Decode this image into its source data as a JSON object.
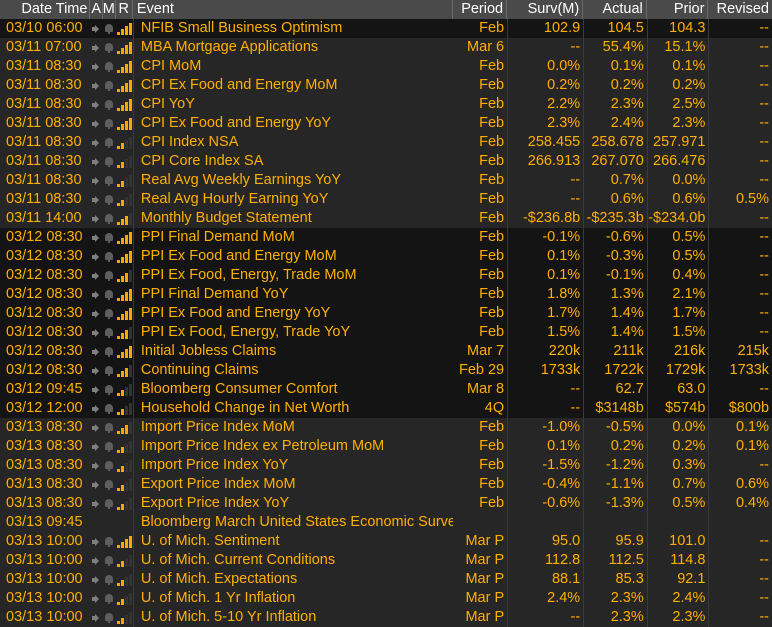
{
  "headers": {
    "date_time": "Date Time",
    "a": "A",
    "m": "M",
    "r": "R",
    "event": "Event",
    "period": "Period",
    "surv": "Surv(M)",
    "actual": "Actual",
    "prior": "Prior",
    "revised": "Revised"
  },
  "colors": {
    "text": "#ffb000",
    "header_bg": "#4a4a4a",
    "row_dark": "#141414",
    "row_light": "#262626",
    "relevance_bar": "#ffa500"
  },
  "rows": [
    {
      "date": "03/10 06:00",
      "event": "NFIB Small Business Optimism",
      "period": "Feb",
      "surv": "102.9",
      "actual": "104.5",
      "prior": "104.3",
      "revised": "--",
      "relevance": 4,
      "group": 0,
      "icons": true
    },
    {
      "date": "03/11 07:00",
      "event": "MBA Mortgage Applications",
      "period": "Mar 6",
      "surv": "--",
      "actual": "55.4%",
      "prior": "15.1%",
      "revised": "--",
      "relevance": 4,
      "group": 1,
      "icons": true
    },
    {
      "date": "03/11 08:30",
      "event": "CPI MoM",
      "period": "Feb",
      "surv": "0.0%",
      "actual": "0.1%",
      "prior": "0.1%",
      "revised": "--",
      "relevance": 4,
      "group": 1,
      "icons": true
    },
    {
      "date": "03/11 08:30",
      "event": "CPI Ex Food and Energy MoM",
      "period": "Feb",
      "surv": "0.2%",
      "actual": "0.2%",
      "prior": "0.2%",
      "revised": "--",
      "relevance": 4,
      "group": 1,
      "icons": true
    },
    {
      "date": "03/11 08:30",
      "event": "CPI YoY",
      "period": "Feb",
      "surv": "2.2%",
      "actual": "2.3%",
      "prior": "2.5%",
      "revised": "--",
      "relevance": 4,
      "group": 1,
      "icons": true
    },
    {
      "date": "03/11 08:30",
      "event": "CPI Ex Food and Energy YoY",
      "period": "Feb",
      "surv": "2.3%",
      "actual": "2.4%",
      "prior": "2.3%",
      "revised": "--",
      "relevance": 4,
      "group": 1,
      "icons": true
    },
    {
      "date": "03/11 08:30",
      "event": "CPI Index NSA",
      "period": "Feb",
      "surv": "258.455",
      "actual": "258.678",
      "prior": "257.971",
      "revised": "--",
      "relevance": 2,
      "group": 1,
      "icons": true
    },
    {
      "date": "03/11 08:30",
      "event": "CPI Core Index SA",
      "period": "Feb",
      "surv": "266.913",
      "actual": "267.070",
      "prior": "266.476",
      "revised": "--",
      "relevance": 2,
      "group": 1,
      "icons": true
    },
    {
      "date": "03/11 08:30",
      "event": "Real Avg Weekly Earnings YoY",
      "period": "Feb",
      "surv": "--",
      "actual": "0.7%",
      "prior": "0.0%",
      "revised": "--",
      "relevance": 2,
      "group": 1,
      "icons": true
    },
    {
      "date": "03/11 08:30",
      "event": "Real Avg Hourly Earning YoY",
      "period": "Feb",
      "surv": "--",
      "actual": "0.6%",
      "prior": "0.6%",
      "revised": "0.5%",
      "relevance": 2,
      "group": 1,
      "icons": true
    },
    {
      "date": "03/11 14:00",
      "event": "Monthly Budget Statement",
      "period": "Feb",
      "surv": "-$236.8b",
      "actual": "-$235.3b",
      "prior": "-$234.0b",
      "revised": "--",
      "relevance": 3,
      "group": 1,
      "icons": true
    },
    {
      "date": "03/12 08:30",
      "event": "PPI Final Demand MoM",
      "period": "Feb",
      "surv": "-0.1%",
      "actual": "-0.6%",
      "prior": "0.5%",
      "revised": "--",
      "relevance": 4,
      "group": 0,
      "icons": true
    },
    {
      "date": "03/12 08:30",
      "event": "PPI Ex Food and Energy MoM",
      "period": "Feb",
      "surv": "0.1%",
      "actual": "-0.3%",
      "prior": "0.5%",
      "revised": "--",
      "relevance": 4,
      "group": 0,
      "icons": true
    },
    {
      "date": "03/12 08:30",
      "event": "PPI Ex Food, Energy, Trade MoM",
      "period": "Feb",
      "surv": "0.1%",
      "actual": "-0.1%",
      "prior": "0.4%",
      "revised": "--",
      "relevance": 3,
      "group": 0,
      "icons": true
    },
    {
      "date": "03/12 08:30",
      "event": "PPI Final Demand YoY",
      "period": "Feb",
      "surv": "1.8%",
      "actual": "1.3%",
      "prior": "2.1%",
      "revised": "--",
      "relevance": 4,
      "group": 0,
      "icons": true
    },
    {
      "date": "03/12 08:30",
      "event": "PPI Ex Food and Energy YoY",
      "period": "Feb",
      "surv": "1.7%",
      "actual": "1.4%",
      "prior": "1.7%",
      "revised": "--",
      "relevance": 4,
      "group": 0,
      "icons": true
    },
    {
      "date": "03/12 08:30",
      "event": "PPI Ex Food, Energy, Trade YoY",
      "period": "Feb",
      "surv": "1.5%",
      "actual": "1.4%",
      "prior": "1.5%",
      "revised": "--",
      "relevance": 3,
      "group": 0,
      "icons": true
    },
    {
      "date": "03/12 08:30",
      "event": "Initial Jobless Claims",
      "period": "Mar 7",
      "surv": "220k",
      "actual": "211k",
      "prior": "216k",
      "revised": "215k",
      "relevance": 4,
      "group": 0,
      "icons": true
    },
    {
      "date": "03/12 08:30",
      "event": "Continuing Claims",
      "period": "Feb 29",
      "surv": "1733k",
      "actual": "1722k",
      "prior": "1729k",
      "revised": "1733k",
      "relevance": 3,
      "group": 0,
      "icons": true
    },
    {
      "date": "03/12 09:45",
      "event": "Bloomberg Consumer Comfort",
      "period": "Mar 8",
      "surv": "--",
      "actual": "62.7",
      "prior": "63.0",
      "revised": "--",
      "relevance": 2,
      "group": 0,
      "icons": true
    },
    {
      "date": "03/12 12:00",
      "event": "Household Change in Net Worth",
      "period": "4Q",
      "surv": "--",
      "actual": "$3148b",
      "prior": "$574b",
      "revised": "$800b",
      "relevance": 2,
      "group": 0,
      "icons": true
    },
    {
      "date": "03/13 08:30",
      "event": "Import Price Index MoM",
      "period": "Feb",
      "surv": "-1.0%",
      "actual": "-0.5%",
      "prior": "0.0%",
      "revised": "0.1%",
      "relevance": 3,
      "group": 1,
      "icons": true
    },
    {
      "date": "03/13 08:30",
      "event": "Import Price Index ex Petroleum MoM",
      "period": "Feb",
      "surv": "0.1%",
      "actual": "0.2%",
      "prior": "0.2%",
      "revised": "0.1%",
      "relevance": 2,
      "group": 1,
      "icons": true
    },
    {
      "date": "03/13 08:30",
      "event": "Import Price Index YoY",
      "period": "Feb",
      "surv": "-1.5%",
      "actual": "-1.2%",
      "prior": "0.3%",
      "revised": "--",
      "relevance": 2,
      "group": 1,
      "icons": true
    },
    {
      "date": "03/13 08:30",
      "event": "Export Price Index MoM",
      "period": "Feb",
      "surv": "-0.4%",
      "actual": "-1.1%",
      "prior": "0.7%",
      "revised": "0.6%",
      "relevance": 2,
      "group": 1,
      "icons": true
    },
    {
      "date": "03/13 08:30",
      "event": "Export Price Index YoY",
      "period": "Feb",
      "surv": "-0.6%",
      "actual": "-1.3%",
      "prior": "0.5%",
      "revised": "0.4%",
      "relevance": 2,
      "group": 1,
      "icons": true
    },
    {
      "date": "03/13 09:45",
      "event": "Bloomberg March United States Economic Survey",
      "period": "",
      "surv": "",
      "actual": "",
      "prior": "",
      "revised": "",
      "relevance": 0,
      "group": 1,
      "icons": false
    },
    {
      "date": "03/13 10:00",
      "event": "U. of Mich. Sentiment",
      "period": "Mar P",
      "surv": "95.0",
      "actual": "95.9",
      "prior": "101.0",
      "revised": "--",
      "relevance": 4,
      "group": 1,
      "icons": true
    },
    {
      "date": "03/13 10:00",
      "event": "U. of Mich. Current Conditions",
      "period": "Mar P",
      "surv": "112.8",
      "actual": "112.5",
      "prior": "114.8",
      "revised": "--",
      "relevance": 2,
      "group": 1,
      "icons": true
    },
    {
      "date": "03/13 10:00",
      "event": "U. of Mich. Expectations",
      "period": "Mar P",
      "surv": "88.1",
      "actual": "85.3",
      "prior": "92.1",
      "revised": "--",
      "relevance": 2,
      "group": 1,
      "icons": true
    },
    {
      "date": "03/13 10:00",
      "event": "U. of Mich. 1 Yr Inflation",
      "period": "Mar P",
      "surv": "2.4%",
      "actual": "2.3%",
      "prior": "2.4%",
      "revised": "--",
      "relevance": 2,
      "group": 1,
      "icons": true
    },
    {
      "date": "03/13 10:00",
      "event": "U. of Mich. 5-10 Yr Inflation",
      "period": "Mar P",
      "surv": "--",
      "actual": "2.3%",
      "prior": "2.3%",
      "revised": "--",
      "relevance": 2,
      "group": 1,
      "icons": true
    }
  ]
}
